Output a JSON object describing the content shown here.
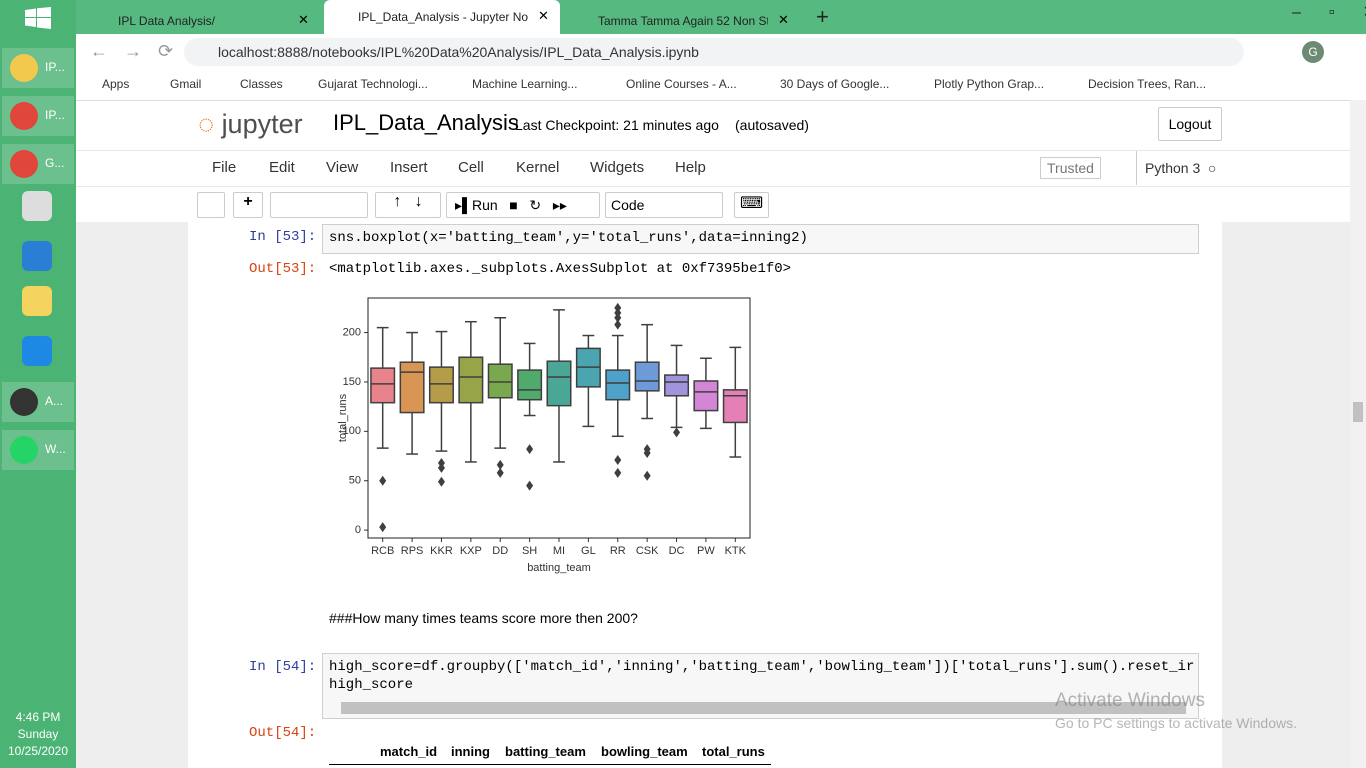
{
  "taskbar": {
    "items": [
      "IP...",
      "IP...",
      "G...",
      "A...",
      "W..."
    ],
    "time": "4:46 PM",
    "day": "Sunday",
    "date": "10/25/2020"
  },
  "browser": {
    "tabs": [
      "IPL Data Analysis/",
      "IPL_Data_Analysis - Jupyter Notel",
      "Tamma Tamma Again 52 Non St"
    ],
    "address": "localhost:8888/notebooks/IPL%20Data%20Analysis/IPL_Data_Analysis.ipynb",
    "profile": "G",
    "bookmarks": [
      "Apps",
      "Gmail",
      "Classes",
      "Gujarat Technologi...",
      "Machine Learning...",
      "Online Courses - A...",
      "30 Days of Google...",
      "Plotly Python Grap...",
      "Decision Trees, Ran..."
    ]
  },
  "jupyter": {
    "logo": "jupyter",
    "notebook": "IPL_Data_Analysis",
    "checkpoint": "Last Checkpoint: 21 minutes ago",
    "autosaved": "(autosaved)",
    "logout": "Logout",
    "menu": [
      "File",
      "Edit",
      "View",
      "Insert",
      "Cell",
      "Kernel",
      "Widgets",
      "Help"
    ],
    "trusted": "Trusted",
    "kernel": "Python 3",
    "run": "Run",
    "cell_type": "Code"
  },
  "cells": {
    "in53": "In [53]:",
    "code53": "sns.boxplot(x='batting_team',y='total_runs',data=inning2)",
    "out53": "Out[53]:",
    "result53": "<matplotlib.axes._subplots.AxesSubplot at 0xf7395be1f0>",
    "markdown": "###How many times teams score more then 200?",
    "in54": "In [54]:",
    "code54a": "high_score=df.groupby(['match_id','inning','batting_team','bowling_team'])['total_runs'].sum().reset_ir",
    "code54b": "high_score",
    "out54": "Out[54]:",
    "table_headers": [
      "match_id",
      "inning",
      "batting_team",
      "bowling_team",
      "total_runs"
    ]
  },
  "watermark": {
    "title": "Activate Windows",
    "text": "Go to PC settings to activate Windows."
  },
  "chart_data": {
    "type": "box",
    "x_label": "batting_team",
    "y_label": "total_runs",
    "categories": [
      "RCB",
      "RPS",
      "KKR",
      "KXP",
      "DD",
      "SH",
      "MI",
      "GL",
      "RR",
      "CSK",
      "DC",
      "PW",
      "KTK"
    ],
    "colors": [
      "#e8838c",
      "#d99554",
      "#b59c48",
      "#98a448",
      "#7aa84e",
      "#4faa6c",
      "#4aa795",
      "#4aa5b1",
      "#4ea1c8",
      "#6e9ad8",
      "#a193dc",
      "#d286d5",
      "#e480b6"
    ],
    "boxes": [
      {
        "low": 83,
        "q1": 129,
        "median": 148,
        "q3": 164,
        "high": 205,
        "outliers": [
          50,
          3
        ]
      },
      {
        "low": 77,
        "q1": 119,
        "median": 160,
        "q3": 170,
        "high": 200,
        "outliers": []
      },
      {
        "low": 80,
        "q1": 129,
        "median": 148,
        "q3": 165,
        "high": 201,
        "outliers": [
          68,
          63,
          49
        ]
      },
      {
        "low": 69,
        "q1": 129,
        "median": 155,
        "q3": 175,
        "high": 211,
        "outliers": []
      },
      {
        "low": 83,
        "q1": 134,
        "median": 150,
        "q3": 168,
        "high": 215,
        "outliers": [
          66,
          58
        ]
      },
      {
        "low": 116,
        "q1": 132,
        "median": 142,
        "q3": 162,
        "high": 189,
        "outliers": [
          82,
          45
        ]
      },
      {
        "low": 69,
        "q1": 126,
        "median": 155,
        "q3": 171,
        "high": 223,
        "outliers": []
      },
      {
        "low": 105,
        "q1": 145,
        "median": 165,
        "q3": 184,
        "high": 197,
        "outliers": []
      },
      {
        "low": 95,
        "q1": 132,
        "median": 149,
        "q3": 162,
        "high": 197,
        "outliers": [
          225,
          220,
          215,
          208,
          71,
          58
        ]
      },
      {
        "low": 113,
        "q1": 141,
        "median": 151,
        "q3": 170,
        "high": 208,
        "outliers": [
          82,
          78,
          55
        ]
      },
      {
        "low": 104,
        "q1": 136,
        "median": 150,
        "q3": 157,
        "high": 187,
        "outliers": [
          99
        ]
      },
      {
        "low": 103,
        "q1": 121,
        "median": 140,
        "q3": 151,
        "high": 174,
        "outliers": []
      },
      {
        "low": 74,
        "q1": 109,
        "median": 136,
        "q3": 142,
        "high": 185,
        "outliers": []
      }
    ],
    "ylim": [
      -8,
      235
    ],
    "yticks": [
      0,
      50,
      100,
      150,
      200
    ]
  }
}
